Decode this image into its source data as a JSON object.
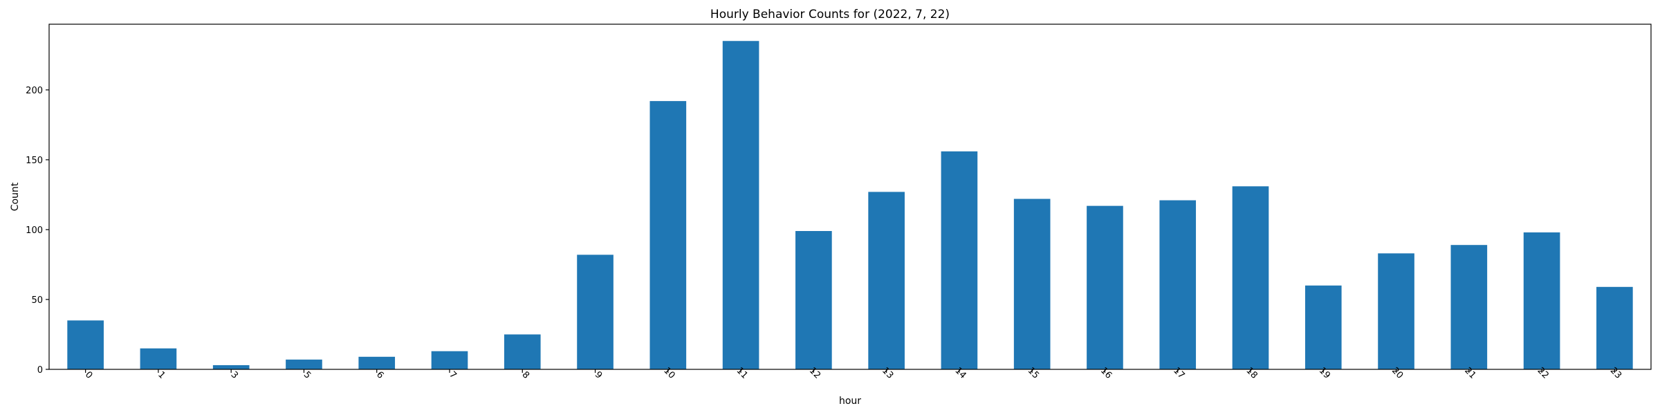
{
  "chart_data": {
    "type": "bar",
    "title": "Hourly Behavior Counts for (2022, 7, 22)",
    "xlabel": "hour",
    "ylabel": "Count",
    "categories": [
      "0",
      "1",
      "3",
      "5",
      "6",
      "7",
      "8",
      "9",
      "10",
      "11",
      "12",
      "13",
      "14",
      "15",
      "16",
      "17",
      "18",
      "19",
      "20",
      "21",
      "22",
      "23"
    ],
    "values": [
      35,
      15,
      3,
      7,
      9,
      13,
      25,
      82,
      192,
      235,
      99,
      127,
      156,
      122,
      117,
      121,
      131,
      60,
      83,
      89,
      98,
      59
    ],
    "ylim": [
      0,
      247
    ],
    "yticks": [
      0,
      50,
      100,
      150,
      200
    ],
    "grid": false,
    "x_tick_rotation": 45,
    "bar_color": "#1f77b4"
  }
}
